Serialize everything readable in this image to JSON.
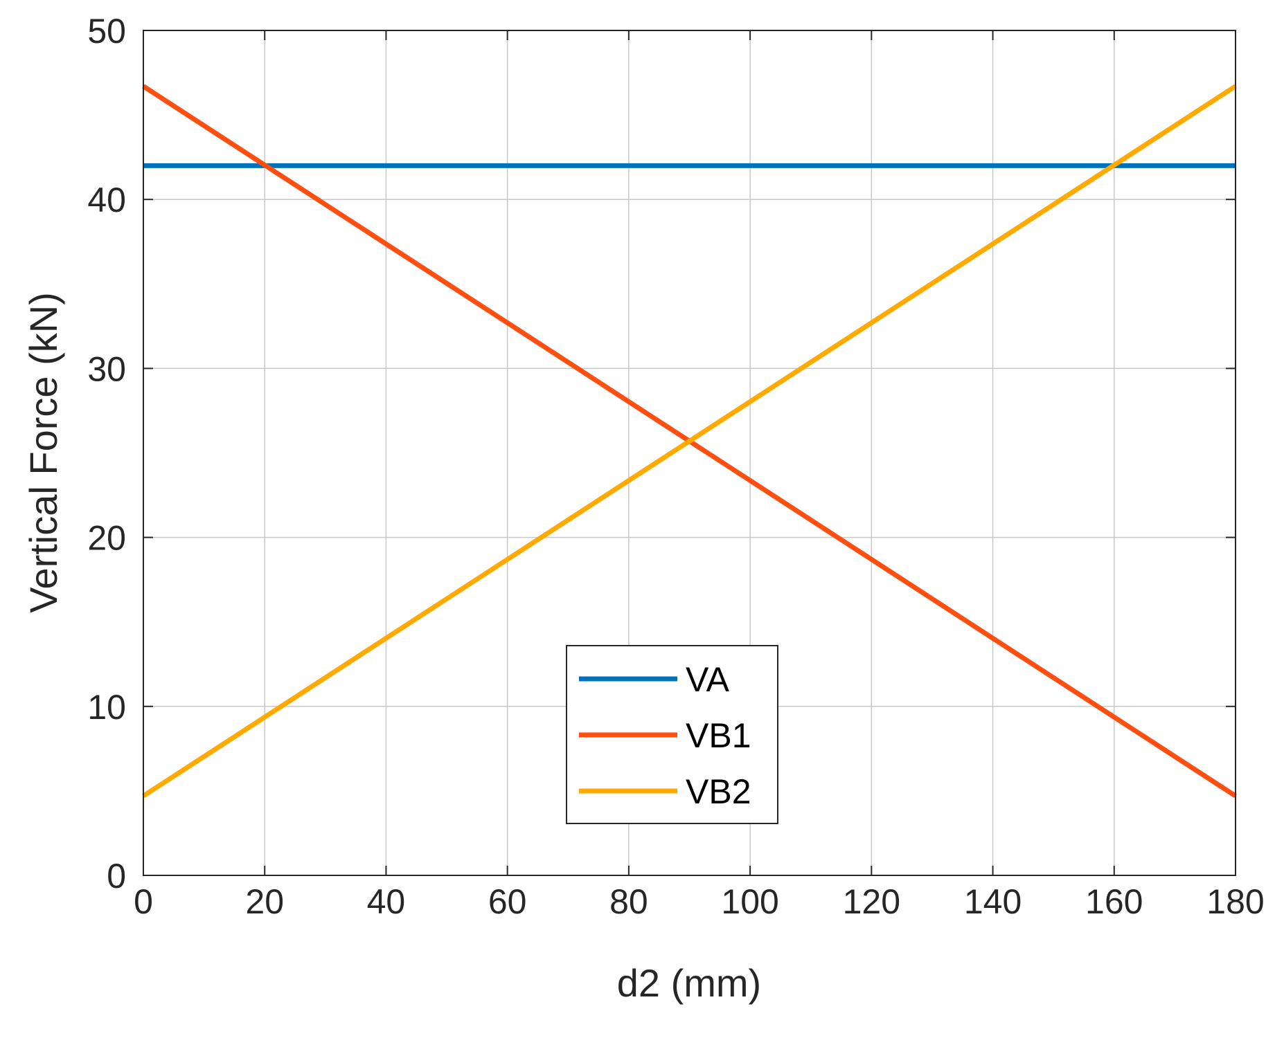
{
  "chart_data": {
    "type": "line",
    "xlabel": "d2 (mm)",
    "ylabel": "Vertical Force (kN)",
    "xlim": [
      0,
      180
    ],
    "ylim": [
      0,
      50
    ],
    "xticks": [
      0,
      20,
      40,
      60,
      80,
      100,
      120,
      140,
      160,
      180
    ],
    "yticks": [
      0,
      10,
      20,
      30,
      40,
      50
    ],
    "xtick_labels": [
      "0",
      "20",
      "40",
      "60",
      "80",
      "100",
      "120",
      "140",
      "160",
      "180"
    ],
    "ytick_labels": [
      "0",
      "10",
      "20",
      "30",
      "40",
      "50"
    ],
    "grid": true,
    "legend_position": "lower-center",
    "series": [
      {
        "name": "VA",
        "color": "#0072BD",
        "x": [
          0,
          180
        ],
        "y": [
          42,
          42
        ]
      },
      {
        "name": "VB1",
        "color": "#FF4F10",
        "x": [
          0,
          180
        ],
        "y": [
          46.7,
          4.7
        ]
      },
      {
        "name": "VB2",
        "color": "#FFAA00",
        "x": [
          0,
          180
        ],
        "y": [
          4.7,
          46.7
        ]
      }
    ]
  }
}
